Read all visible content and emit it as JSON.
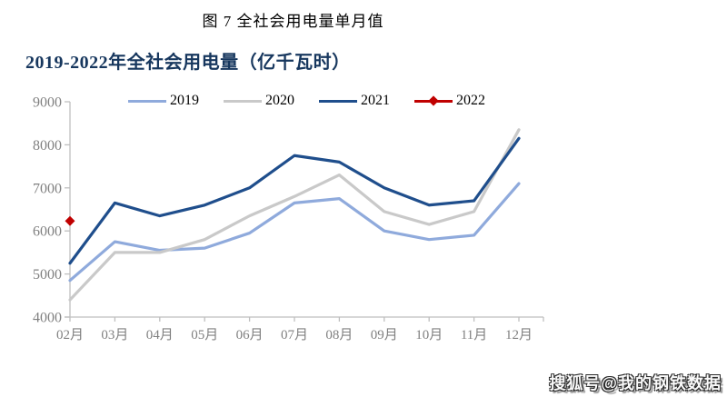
{
  "page": {
    "figure_title": "图 7 全社会用电量单月值",
    "watermark": "搜狐号@我的钢铁数据"
  },
  "chart_data": {
    "type": "line",
    "title": "2019-2022年全社会用电量（亿千瓦时）",
    "categories": [
      "02月",
      "03月",
      "04月",
      "05月",
      "06月",
      "07月",
      "08月",
      "09月",
      "10月",
      "11月",
      "12月"
    ],
    "yticks": [
      4000,
      5000,
      6000,
      7000,
      8000,
      9000
    ],
    "ylim": [
      4000,
      9000
    ],
    "grid": false,
    "legend_position": "top",
    "series": [
      {
        "name": "2019",
        "color": "#8FAADC",
        "marker": null,
        "values": [
          4850,
          5750,
          5550,
          5600,
          5950,
          6650,
          6750,
          6000,
          5800,
          5900,
          7100
        ]
      },
      {
        "name": "2020",
        "color": "#C9C9C9",
        "marker": null,
        "values": [
          4400,
          5500,
          5500,
          5800,
          6350,
          6800,
          7300,
          6450,
          6150,
          6450,
          8350
        ]
      },
      {
        "name": "2021",
        "color": "#1F4E8C",
        "marker": null,
        "values": [
          5250,
          6650,
          6350,
          6600,
          7000,
          7750,
          7600,
          7000,
          6600,
          6700,
          8150
        ]
      },
      {
        "name": "2022",
        "color": "#C00000",
        "marker": "diamond",
        "values": [
          6230,
          null,
          null,
          null,
          null,
          null,
          null,
          null,
          null,
          null,
          null
        ]
      }
    ],
    "colors": {
      "title": "#17375E",
      "axis": "#BFBFBF",
      "tick_label": "#808080"
    }
  }
}
